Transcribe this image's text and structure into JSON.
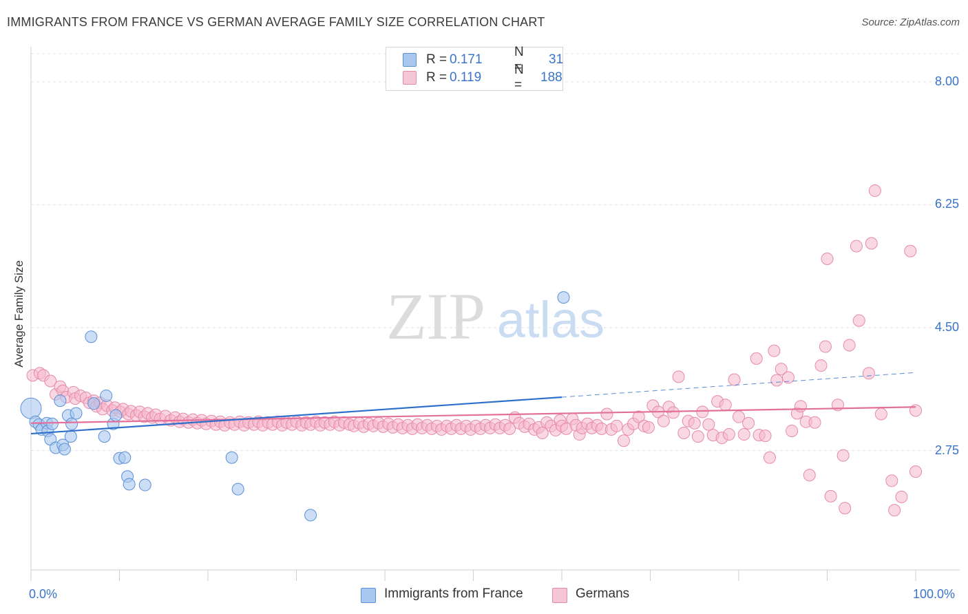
{
  "title": "IMMIGRANTS FROM FRANCE VS GERMAN AVERAGE FAMILY SIZE CORRELATION CHART",
  "source": "Source: ZipAtlas.com",
  "watermark": {
    "zip": "ZIP",
    "atlas": "atlas"
  },
  "legend": {
    "r_label": "R =",
    "n_label": "N =",
    "france": {
      "r": "0.171",
      "n": "31"
    },
    "germans": {
      "r": "0.119",
      "n": "188"
    }
  },
  "colors": {
    "france_fill": "#a9c8f0",
    "france_stroke": "#5b8fd6",
    "france_line": "#2f6fcc",
    "germans_fill": "#f5b8cc",
    "germans_stroke": "#e58aa8",
    "germans_line": "#e2709a",
    "tick_text": "#3b73c9"
  },
  "chart_data": {
    "type": "scatter",
    "title": "IMMIGRANTS FROM FRANCE VS GERMAN AVERAGE FAMILY SIZE CORRELATION CHART",
    "xlabel": "",
    "ylabel": "Average Family Size",
    "xlim": [
      0,
      100
    ],
    "ylim": [
      1.05,
      8.4
    ],
    "y_ticks": [
      2.75,
      4.5,
      6.25,
      8.0
    ],
    "y_tick_labels": [
      "2.75",
      "4.50",
      "6.25",
      "8.00"
    ],
    "x_tick_labels": [
      "0.0%",
      "100.0%"
    ],
    "grid": true,
    "legend_position": "top-center",
    "series": [
      {
        "name": "Immigrants from France",
        "r": 0.171,
        "n": 31,
        "trend": {
          "x": [
            0,
            60
          ],
          "y": [
            2.99,
            3.51
          ],
          "dashed_to": [
            100,
            3.86
          ]
        },
        "points": [
          {
            "x": 0.0,
            "y": 3.35,
            "big": true
          },
          {
            "x": 0.5,
            "y": 3.16
          },
          {
            "x": 0.9,
            "y": 3.12
          },
          {
            "x": 1.2,
            "y": 3.05
          },
          {
            "x": 1.8,
            "y": 3.14
          },
          {
            "x": 1.9,
            "y": 3.03
          },
          {
            "x": 2.4,
            "y": 3.13
          },
          {
            "x": 2.2,
            "y": 2.91
          },
          {
            "x": 2.8,
            "y": 2.79
          },
          {
            "x": 3.6,
            "y": 2.83
          },
          {
            "x": 3.3,
            "y": 3.46
          },
          {
            "x": 3.8,
            "y": 2.77
          },
          {
            "x": 4.2,
            "y": 3.25
          },
          {
            "x": 4.5,
            "y": 2.95
          },
          {
            "x": 4.6,
            "y": 3.13
          },
          {
            "x": 5.1,
            "y": 3.28
          },
          {
            "x": 6.8,
            "y": 4.37
          },
          {
            "x": 7.1,
            "y": 3.42
          },
          {
            "x": 8.3,
            "y": 2.95
          },
          {
            "x": 8.5,
            "y": 3.53
          },
          {
            "x": 9.3,
            "y": 3.13
          },
          {
            "x": 9.6,
            "y": 3.25
          },
          {
            "x": 10.0,
            "y": 2.64
          },
          {
            "x": 10.6,
            "y": 2.65
          },
          {
            "x": 10.9,
            "y": 2.38
          },
          {
            "x": 11.1,
            "y": 2.27
          },
          {
            "x": 12.9,
            "y": 2.26
          },
          {
            "x": 22.7,
            "y": 2.65
          },
          {
            "x": 23.4,
            "y": 2.2
          },
          {
            "x": 31.6,
            "y": 1.83
          },
          {
            "x": 60.2,
            "y": 4.93
          }
        ]
      },
      {
        "name": "Germans",
        "r": 0.119,
        "n": 188,
        "trend": {
          "x": [
            0,
            100
          ],
          "y": [
            3.14,
            3.37
          ]
        },
        "points": [
          {
            "x": 0.2,
            "y": 3.82
          },
          {
            "x": 1.0,
            "y": 3.85
          },
          {
            "x": 1.4,
            "y": 3.82
          },
          {
            "x": 2.2,
            "y": 3.74
          },
          {
            "x": 2.8,
            "y": 3.55
          },
          {
            "x": 3.3,
            "y": 3.66
          },
          {
            "x": 3.6,
            "y": 3.6
          },
          {
            "x": 4.0,
            "y": 3.51
          },
          {
            "x": 4.8,
            "y": 3.58
          },
          {
            "x": 5.0,
            "y": 3.49
          },
          {
            "x": 5.6,
            "y": 3.53
          },
          {
            "x": 6.2,
            "y": 3.5
          },
          {
            "x": 6.6,
            "y": 3.43
          },
          {
            "x": 7.1,
            "y": 3.46
          },
          {
            "x": 7.4,
            "y": 3.38
          },
          {
            "x": 7.8,
            "y": 3.43
          },
          {
            "x": 8.1,
            "y": 3.34
          },
          {
            "x": 8.6,
            "y": 3.39
          },
          {
            "x": 9.2,
            "y": 3.32
          },
          {
            "x": 9.5,
            "y": 3.36
          },
          {
            "x": 10.1,
            "y": 3.3
          },
          {
            "x": 10.4,
            "y": 3.34
          },
          {
            "x": 11.0,
            "y": 3.27
          },
          {
            "x": 11.3,
            "y": 3.31
          },
          {
            "x": 11.9,
            "y": 3.25
          },
          {
            "x": 12.3,
            "y": 3.3
          },
          {
            "x": 12.8,
            "y": 3.23
          },
          {
            "x": 13.2,
            "y": 3.28
          },
          {
            "x": 13.7,
            "y": 3.22
          },
          {
            "x": 14.1,
            "y": 3.26
          },
          {
            "x": 14.6,
            "y": 3.2
          },
          {
            "x": 15.2,
            "y": 3.24
          },
          {
            "x": 15.8,
            "y": 3.18
          },
          {
            "x": 16.3,
            "y": 3.22
          },
          {
            "x": 16.8,
            "y": 3.16
          },
          {
            "x": 17.2,
            "y": 3.2
          },
          {
            "x": 17.8,
            "y": 3.15
          },
          {
            "x": 18.3,
            "y": 3.19
          },
          {
            "x": 18.8,
            "y": 3.14
          },
          {
            "x": 19.3,
            "y": 3.18
          },
          {
            "x": 19.8,
            "y": 3.13
          },
          {
            "x": 20.4,
            "y": 3.17
          },
          {
            "x": 20.9,
            "y": 3.12
          },
          {
            "x": 21.4,
            "y": 3.16
          },
          {
            "x": 21.9,
            "y": 3.11
          },
          {
            "x": 22.5,
            "y": 3.15
          },
          {
            "x": 23.0,
            "y": 3.12
          },
          {
            "x": 23.6,
            "y": 3.16
          },
          {
            "x": 24.1,
            "y": 3.11
          },
          {
            "x": 24.6,
            "y": 3.15
          },
          {
            "x": 25.2,
            "y": 3.12
          },
          {
            "x": 25.7,
            "y": 3.16
          },
          {
            "x": 26.2,
            "y": 3.11
          },
          {
            "x": 26.8,
            "y": 3.15
          },
          {
            "x": 27.3,
            "y": 3.12
          },
          {
            "x": 27.9,
            "y": 3.16
          },
          {
            "x": 28.4,
            "y": 3.11
          },
          {
            "x": 28.9,
            "y": 3.15
          },
          {
            "x": 29.5,
            "y": 3.12
          },
          {
            "x": 30.0,
            "y": 3.16
          },
          {
            "x": 30.6,
            "y": 3.11
          },
          {
            "x": 31.1,
            "y": 3.15
          },
          {
            "x": 31.6,
            "y": 3.12
          },
          {
            "x": 32.2,
            "y": 3.16
          },
          {
            "x": 32.7,
            "y": 3.11
          },
          {
            "x": 33.2,
            "y": 3.15
          },
          {
            "x": 33.8,
            "y": 3.12
          },
          {
            "x": 34.3,
            "y": 3.16
          },
          {
            "x": 34.9,
            "y": 3.11
          },
          {
            "x": 35.4,
            "y": 3.15
          },
          {
            "x": 36.0,
            "y": 3.12
          },
          {
            "x": 36.5,
            "y": 3.1
          },
          {
            "x": 37.1,
            "y": 3.14
          },
          {
            "x": 37.6,
            "y": 3.09
          },
          {
            "x": 38.2,
            "y": 3.13
          },
          {
            "x": 38.7,
            "y": 3.1
          },
          {
            "x": 39.3,
            "y": 3.14
          },
          {
            "x": 39.8,
            "y": 3.09
          },
          {
            "x": 40.4,
            "y": 3.13
          },
          {
            "x": 40.9,
            "y": 3.08
          },
          {
            "x": 41.5,
            "y": 3.12
          },
          {
            "x": 42.0,
            "y": 3.07
          },
          {
            "x": 42.6,
            "y": 3.11
          },
          {
            "x": 43.1,
            "y": 3.06
          },
          {
            "x": 43.7,
            "y": 3.12
          },
          {
            "x": 44.2,
            "y": 3.07
          },
          {
            "x": 44.8,
            "y": 3.11
          },
          {
            "x": 45.3,
            "y": 3.06
          },
          {
            "x": 45.9,
            "y": 3.1
          },
          {
            "x": 46.4,
            "y": 3.05
          },
          {
            "x": 47.0,
            "y": 3.1
          },
          {
            "x": 47.5,
            "y": 3.06
          },
          {
            "x": 48.1,
            "y": 3.11
          },
          {
            "x": 48.6,
            "y": 3.06
          },
          {
            "x": 49.2,
            "y": 3.1
          },
          {
            "x": 49.7,
            "y": 3.05
          },
          {
            "x": 50.3,
            "y": 3.1
          },
          {
            "x": 50.8,
            "y": 3.06
          },
          {
            "x": 51.4,
            "y": 3.11
          },
          {
            "x": 51.9,
            "y": 3.07
          },
          {
            "x": 52.5,
            "y": 3.12
          },
          {
            "x": 53.0,
            "y": 3.07
          },
          {
            "x": 53.6,
            "y": 3.11
          },
          {
            "x": 54.1,
            "y": 3.06
          },
          {
            "x": 54.7,
            "y": 3.22
          },
          {
            "x": 55.2,
            "y": 3.14
          },
          {
            "x": 55.8,
            "y": 3.09
          },
          {
            "x": 56.3,
            "y": 3.13
          },
          {
            "x": 56.9,
            "y": 3.05
          },
          {
            "x": 57.4,
            "y": 3.08
          },
          {
            "x": 57.8,
            "y": 3.0
          },
          {
            "x": 58.3,
            "y": 3.15
          },
          {
            "x": 58.8,
            "y": 3.1
          },
          {
            "x": 59.3,
            "y": 3.04
          },
          {
            "x": 59.8,
            "y": 3.18
          },
          {
            "x": 60.0,
            "y": 3.1
          },
          {
            "x": 62.0,
            "y": 2.98
          },
          {
            "x": 60.5,
            "y": 3.06
          },
          {
            "x": 61.2,
            "y": 3.2
          },
          {
            "x": 61.6,
            "y": 3.11
          },
          {
            "x": 62.3,
            "y": 3.07
          },
          {
            "x": 62.9,
            "y": 3.13
          },
          {
            "x": 63.4,
            "y": 3.07
          },
          {
            "x": 64.0,
            "y": 3.11
          },
          {
            "x": 64.5,
            "y": 3.06
          },
          {
            "x": 65.1,
            "y": 3.27
          },
          {
            "x": 65.6,
            "y": 3.05
          },
          {
            "x": 66.2,
            "y": 3.1
          },
          {
            "x": 67.0,
            "y": 2.89
          },
          {
            "x": 67.5,
            "y": 3.05
          },
          {
            "x": 68.1,
            "y": 3.13
          },
          {
            "x": 68.7,
            "y": 3.23
          },
          {
            "x": 69.3,
            "y": 3.1
          },
          {
            "x": 69.8,
            "y": 3.08
          },
          {
            "x": 70.3,
            "y": 3.39
          },
          {
            "x": 70.9,
            "y": 3.3
          },
          {
            "x": 71.5,
            "y": 3.17
          },
          {
            "x": 72.1,
            "y": 3.37
          },
          {
            "x": 72.6,
            "y": 3.29
          },
          {
            "x": 73.2,
            "y": 3.8
          },
          {
            "x": 73.8,
            "y": 3.0
          },
          {
            "x": 74.3,
            "y": 3.17
          },
          {
            "x": 75.0,
            "y": 3.14
          },
          {
            "x": 75.4,
            "y": 2.95
          },
          {
            "x": 75.9,
            "y": 3.3
          },
          {
            "x": 76.6,
            "y": 3.12
          },
          {
            "x": 77.1,
            "y": 2.97
          },
          {
            "x": 77.6,
            "y": 3.45
          },
          {
            "x": 78.1,
            "y": 2.93
          },
          {
            "x": 78.5,
            "y": 3.4
          },
          {
            "x": 78.9,
            "y": 2.98
          },
          {
            "x": 79.5,
            "y": 3.76
          },
          {
            "x": 80.0,
            "y": 3.23
          },
          {
            "x": 80.6,
            "y": 2.98
          },
          {
            "x": 81.1,
            "y": 3.14
          },
          {
            "x": 82.0,
            "y": 4.06
          },
          {
            "x": 82.3,
            "y": 2.97
          },
          {
            "x": 83.0,
            "y": 2.96
          },
          {
            "x": 83.5,
            "y": 2.65
          },
          {
            "x": 84.0,
            "y": 4.17
          },
          {
            "x": 84.3,
            "y": 3.75
          },
          {
            "x": 84.8,
            "y": 3.91
          },
          {
            "x": 85.6,
            "y": 3.79
          },
          {
            "x": 86.0,
            "y": 3.03
          },
          {
            "x": 86.6,
            "y": 3.28
          },
          {
            "x": 87.0,
            "y": 3.38
          },
          {
            "x": 87.6,
            "y": 3.16
          },
          {
            "x": 88.0,
            "y": 2.4
          },
          {
            "x": 88.6,
            "y": 3.15
          },
          {
            "x": 89.3,
            "y": 3.96
          },
          {
            "x": 89.8,
            "y": 4.23
          },
          {
            "x": 90.0,
            "y": 5.48
          },
          {
            "x": 90.4,
            "y": 2.1
          },
          {
            "x": 91.2,
            "y": 3.4
          },
          {
            "x": 91.8,
            "y": 2.68
          },
          {
            "x": 92.0,
            "y": 1.93
          },
          {
            "x": 92.5,
            "y": 4.25
          },
          {
            "x": 93.3,
            "y": 5.66
          },
          {
            "x": 93.6,
            "y": 4.6
          },
          {
            "x": 94.7,
            "y": 3.85
          },
          {
            "x": 95.0,
            "y": 5.7
          },
          {
            "x": 95.4,
            "y": 6.45
          },
          {
            "x": 96.1,
            "y": 3.27
          },
          {
            "x": 97.3,
            "y": 2.32
          },
          {
            "x": 97.6,
            "y": 1.9
          },
          {
            "x": 98.4,
            "y": 2.09
          },
          {
            "x": 99.4,
            "y": 5.59
          },
          {
            "x": 100.0,
            "y": 2.45
          },
          {
            "x": 100.0,
            "y": 3.32
          }
        ]
      }
    ]
  },
  "bottom_legend": {
    "france": "Immigrants from France",
    "germans": "Germans"
  }
}
